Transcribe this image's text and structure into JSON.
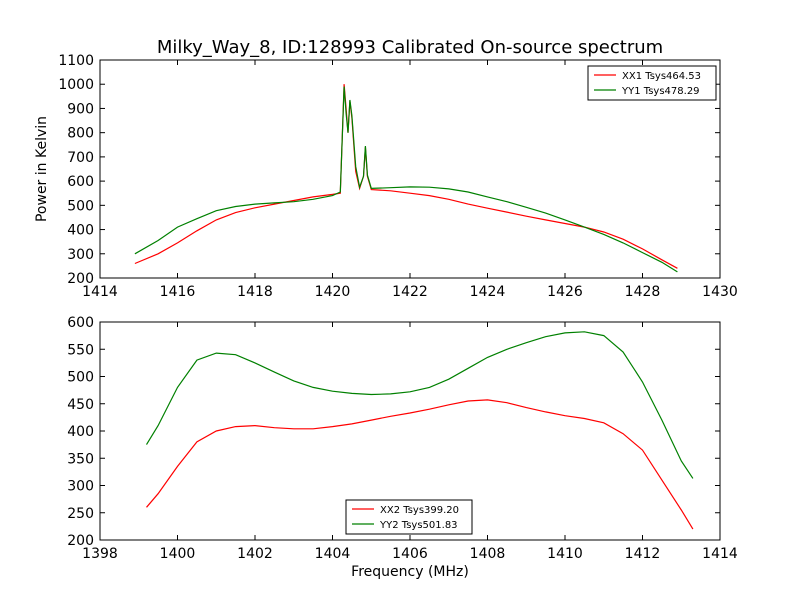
{
  "figure": {
    "title": "Milky_Way_8, ID:128993 Calibrated On-source spectrum"
  },
  "chart_data": [
    {
      "type": "line",
      "title": "Milky_Way_8, ID:128993 Calibrated On-source spectrum",
      "xlabel": "",
      "ylabel": "Power in Kelvin",
      "xlim": [
        1414,
        1430
      ],
      "ylim": [
        200,
        1100
      ],
      "xticks": [
        1414,
        1416,
        1418,
        1420,
        1422,
        1424,
        1426,
        1428,
        1430
      ],
      "yticks": [
        200,
        300,
        400,
        500,
        600,
        700,
        800,
        900,
        1000,
        1100
      ],
      "grid": false,
      "legend_position": "top-right",
      "series": [
        {
          "name": "XX1 Tsys464.53",
          "color": "#ff0000",
          "points": [
            [
              1414.9,
              260
            ],
            [
              1415.5,
              300
            ],
            [
              1416,
              345
            ],
            [
              1416.5,
              395
            ],
            [
              1417,
              440
            ],
            [
              1417.5,
              470
            ],
            [
              1418,
              490
            ],
            [
              1418.5,
              505
            ],
            [
              1419,
              520
            ],
            [
              1419.5,
              535
            ],
            [
              1420,
              545
            ],
            [
              1420.2,
              550
            ],
            [
              1420.3,
              1000
            ],
            [
              1420.35,
              900
            ],
            [
              1420.4,
              800
            ],
            [
              1420.45,
              930
            ],
            [
              1420.5,
              860
            ],
            [
              1420.6,
              640
            ],
            [
              1420.7,
              570
            ],
            [
              1420.8,
              620
            ],
            [
              1420.85,
              740
            ],
            [
              1420.9,
              620
            ],
            [
              1421,
              565
            ],
            [
              1421.5,
              560
            ],
            [
              1422,
              550
            ],
            [
              1422.5,
              540
            ],
            [
              1423,
              525
            ],
            [
              1423.5,
              505
            ],
            [
              1424,
              488
            ],
            [
              1424.5,
              472
            ],
            [
              1425,
              455
            ],
            [
              1425.5,
              440
            ],
            [
              1426,
              425
            ],
            [
              1426.5,
              410
            ],
            [
              1427,
              390
            ],
            [
              1427.5,
              360
            ],
            [
              1428,
              320
            ],
            [
              1428.5,
              275
            ],
            [
              1428.9,
              240
            ]
          ]
        },
        {
          "name": "YY1 Tsys478.29",
          "color": "#008000",
          "points": [
            [
              1414.9,
              300
            ],
            [
              1415.5,
              355
            ],
            [
              1416,
              410
            ],
            [
              1416.5,
              445
            ],
            [
              1417,
              478
            ],
            [
              1417.5,
              495
            ],
            [
              1418,
              505
            ],
            [
              1418.5,
              510
            ],
            [
              1419,
              515
            ],
            [
              1419.5,
              525
            ],
            [
              1420,
              540
            ],
            [
              1420.2,
              555
            ],
            [
              1420.3,
              990
            ],
            [
              1420.35,
              880
            ],
            [
              1420.4,
              800
            ],
            [
              1420.45,
              935
            ],
            [
              1420.5,
              870
            ],
            [
              1420.6,
              660
            ],
            [
              1420.7,
              575
            ],
            [
              1420.8,
              620
            ],
            [
              1420.85,
              745
            ],
            [
              1420.9,
              625
            ],
            [
              1421,
              570
            ],
            [
              1421.5,
              573
            ],
            [
              1422,
              576
            ],
            [
              1422.5,
              575
            ],
            [
              1423,
              568
            ],
            [
              1423.5,
              555
            ],
            [
              1424,
              535
            ],
            [
              1424.5,
              515
            ],
            [
              1425,
              492
            ],
            [
              1425.5,
              468
            ],
            [
              1426,
              440
            ],
            [
              1426.5,
              410
            ],
            [
              1427,
              380
            ],
            [
              1427.5,
              345
            ],
            [
              1428,
              305
            ],
            [
              1428.5,
              265
            ],
            [
              1428.9,
              225
            ]
          ]
        }
      ]
    },
    {
      "type": "line",
      "title": "",
      "xlabel": "Frequency (MHz)",
      "ylabel": "",
      "xlim": [
        1398,
        1414
      ],
      "ylim": [
        200,
        600
      ],
      "xticks": [
        1398,
        1400,
        1402,
        1404,
        1406,
        1408,
        1410,
        1412,
        1414
      ],
      "yticks": [
        200,
        250,
        300,
        350,
        400,
        450,
        500,
        550,
        600
      ],
      "grid": false,
      "legend_position": "bottom-center",
      "series": [
        {
          "name": "XX2 Tsys399.20",
          "color": "#ff0000",
          "points": [
            [
              1399.2,
              260
            ],
            [
              1399.5,
              285
            ],
            [
              1400,
              335
            ],
            [
              1400.5,
              380
            ],
            [
              1401,
              400
            ],
            [
              1401.5,
              408
            ],
            [
              1402,
              410
            ],
            [
              1402.5,
              406
            ],
            [
              1403,
              404
            ],
            [
              1403.5,
              404
            ],
            [
              1404,
              408
            ],
            [
              1404.5,
              413
            ],
            [
              1405,
              420
            ],
            [
              1405.5,
              427
            ],
            [
              1406,
              433
            ],
            [
              1406.5,
              440
            ],
            [
              1407,
              448
            ],
            [
              1407.5,
              455
            ],
            [
              1408,
              457
            ],
            [
              1408.5,
              452
            ],
            [
              1409,
              443
            ],
            [
              1409.5,
              435
            ],
            [
              1410,
              428
            ],
            [
              1410.5,
              423
            ],
            [
              1411,
              415
            ],
            [
              1411.5,
              395
            ],
            [
              1412,
              365
            ],
            [
              1412.5,
              310
            ],
            [
              1413,
              255
            ],
            [
              1413.3,
              220
            ]
          ]
        },
        {
          "name": "YY2 Tsys501.83",
          "color": "#008000",
          "points": [
            [
              1399.2,
              375
            ],
            [
              1399.5,
              410
            ],
            [
              1400,
              480
            ],
            [
              1400.5,
              530
            ],
            [
              1401,
              543
            ],
            [
              1401.5,
              540
            ],
            [
              1402,
              525
            ],
            [
              1402.5,
              508
            ],
            [
              1403,
              492
            ],
            [
              1403.5,
              480
            ],
            [
              1404,
              473
            ],
            [
              1404.5,
              469
            ],
            [
              1405,
              467
            ],
            [
              1405.5,
              468
            ],
            [
              1406,
              472
            ],
            [
              1406.5,
              480
            ],
            [
              1407,
              495
            ],
            [
              1407.5,
              515
            ],
            [
              1408,
              535
            ],
            [
              1408.5,
              550
            ],
            [
              1409,
              562
            ],
            [
              1409.5,
              573
            ],
            [
              1410,
              580
            ],
            [
              1410.5,
              582
            ],
            [
              1411,
              575
            ],
            [
              1411.5,
              545
            ],
            [
              1412,
              490
            ],
            [
              1412.5,
              420
            ],
            [
              1413,
              345
            ],
            [
              1413.3,
              313
            ]
          ]
        }
      ]
    }
  ]
}
